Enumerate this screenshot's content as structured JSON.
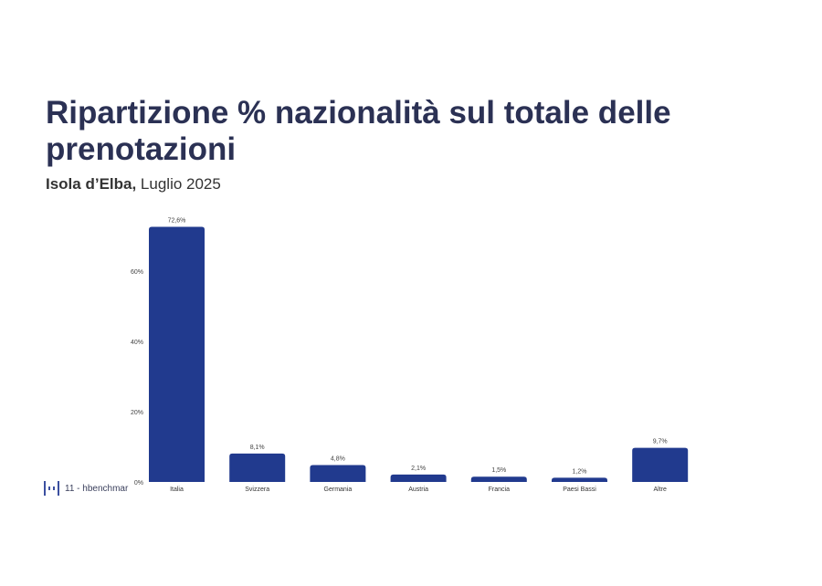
{
  "chart_data": {
    "type": "bar",
    "title": "Ripartizione % nazionalità sul totale delle prenotazioni",
    "subtitle_bold": "Isola d’Elba,",
    "subtitle_rest": " Luglio 2025",
    "categories": [
      "Italia",
      "Svizzera",
      "Germania",
      "Austria",
      "Francia",
      "Paesi Bassi",
      "Altre"
    ],
    "values": [
      72.6,
      8.1,
      4.8,
      2.1,
      1.5,
      1.2,
      9.7
    ],
    "data_labels": [
      "72,6%",
      "8,1%",
      "4,8%",
      "2,1%",
      "1,5%",
      "1,2%",
      "9,7%"
    ],
    "yticks": [
      0,
      20,
      40,
      60
    ],
    "ytick_labels": [
      "0%",
      "20%",
      "40%",
      "60%"
    ],
    "ylim": [
      0,
      72.6
    ],
    "xlabel": "",
    "ylabel": "",
    "grid": false,
    "bar_color": "#213a8e"
  },
  "footer": {
    "page": "11 - hbenchmar"
  }
}
